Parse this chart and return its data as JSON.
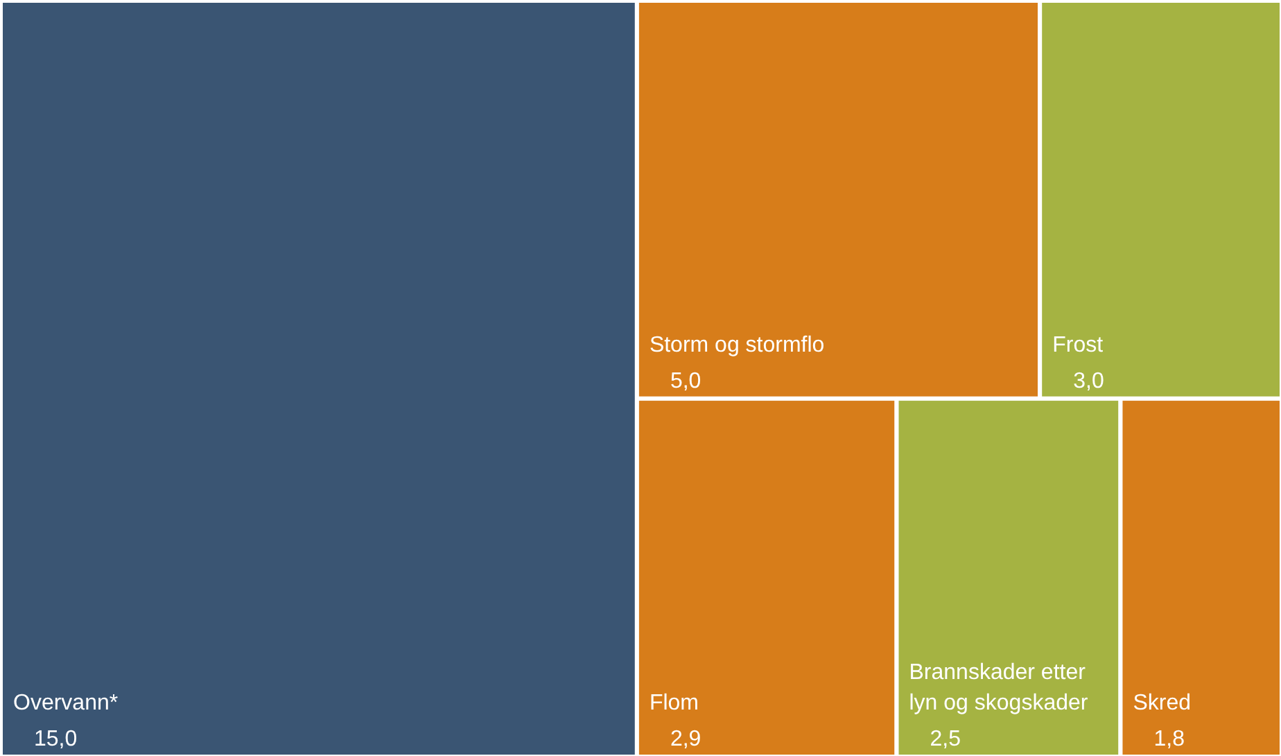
{
  "chart_data": {
    "type": "other",
    "categories": [
      "Overvann*",
      "Storm og stormflo",
      "Frost",
      "Flom",
      "Brannskader etter lyn og skogskader",
      "Skred"
    ],
    "values": [
      15.0,
      5.0,
      3.0,
      2.9,
      2.5,
      1.8
    ],
    "value_labels": [
      "15,0",
      "5,0",
      "3,0",
      "2,9",
      "2,5",
      "1,8"
    ],
    "colors": [
      "#3a5573",
      "#d77d1a",
      "#a5b342",
      "#d77d1a",
      "#a5b342",
      "#d77d1a"
    ]
  }
}
